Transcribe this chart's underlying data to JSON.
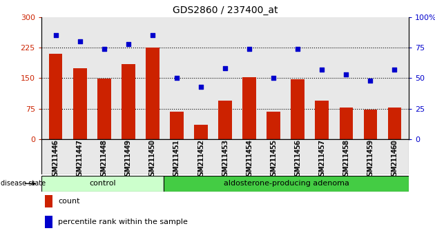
{
  "title": "GDS2860 / 237400_at",
  "samples": [
    "GSM211446",
    "GSM211447",
    "GSM211448",
    "GSM211449",
    "GSM211450",
    "GSM211451",
    "GSM211452",
    "GSM211453",
    "GSM211454",
    "GSM211455",
    "GSM211456",
    "GSM211457",
    "GSM211458",
    "GSM211459",
    "GSM211460"
  ],
  "counts": [
    210,
    175,
    148,
    185,
    225,
    68,
    35,
    95,
    152,
    68,
    147,
    95,
    78,
    72,
    78
  ],
  "percentiles": [
    85,
    80,
    74,
    78,
    85,
    50,
    43,
    58,
    74,
    50,
    74,
    57,
    53,
    48,
    57
  ],
  "n_control": 5,
  "bar_color": "#cc2200",
  "dot_color": "#0000cc",
  "ylim_left": [
    0,
    300
  ],
  "ylim_right": [
    0,
    100
  ],
  "yticks_left": [
    0,
    75,
    150,
    225,
    300
  ],
  "yticks_right": [
    0,
    25,
    50,
    75,
    100
  ],
  "ytick_labels_left": [
    "0",
    "75",
    "150",
    "225",
    "300"
  ],
  "ytick_labels_right": [
    "0",
    "25",
    "50",
    "75",
    "100%"
  ],
  "hlines": [
    75,
    150,
    225
  ],
  "control_color": "#ccffcc",
  "adenoma_color": "#44cc44",
  "legend_count_label": "count",
  "legend_percentile_label": "percentile rank within the sample",
  "disease_state_label": "disease state",
  "control_label": "control",
  "adenoma_label": "aldosterone-producing adenoma",
  "bg_color": "#e8e8e8"
}
